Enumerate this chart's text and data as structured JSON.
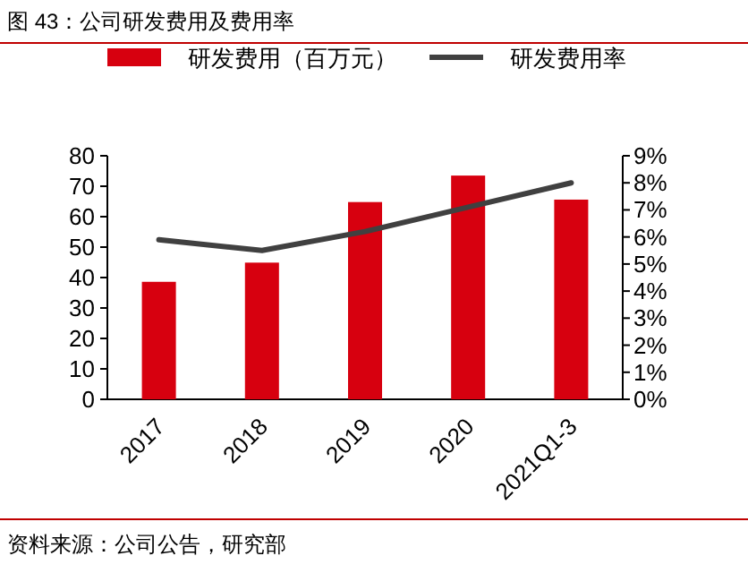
{
  "chart_data": {
    "type": "bar",
    "title": "图 43：公司研发费用及费用率",
    "categories": [
      "2017",
      "2018",
      "2019",
      "2020",
      "2021Q1-3"
    ],
    "series": [
      {
        "name": "研发费用（百万元）",
        "color": "#d7000f",
        "values": [
          38.6,
          44.9,
          64.8,
          73.5,
          65.6
        ]
      },
      {
        "name": "研发费用率",
        "type": "line",
        "axis": "y2",
        "color": "#404040",
        "values": [
          5.9,
          5.5,
          6.2,
          7.1,
          8.0
        ]
      }
    ],
    "ylim": [
      0,
      80
    ],
    "yticks": [
      0,
      10,
      20,
      30,
      40,
      50,
      60,
      70,
      80
    ],
    "y2lim": [
      0,
      9
    ],
    "y2ticks": [
      {
        "value": 0,
        "label": "0%"
      },
      {
        "value": 1,
        "label": "1%"
      },
      {
        "value": 2,
        "label": "2%"
      },
      {
        "value": 3,
        "label": "3%"
      },
      {
        "value": 4,
        "label": "4%"
      },
      {
        "value": 5,
        "label": "5%"
      },
      {
        "value": 6,
        "label": "6%"
      },
      {
        "value": 7,
        "label": "7%"
      },
      {
        "value": 8,
        "label": "8%"
      },
      {
        "value": 9,
        "label": "9%"
      }
    ],
    "legend": "top",
    "annotations": [
      "资料来源：公司公告，研究部"
    ]
  }
}
